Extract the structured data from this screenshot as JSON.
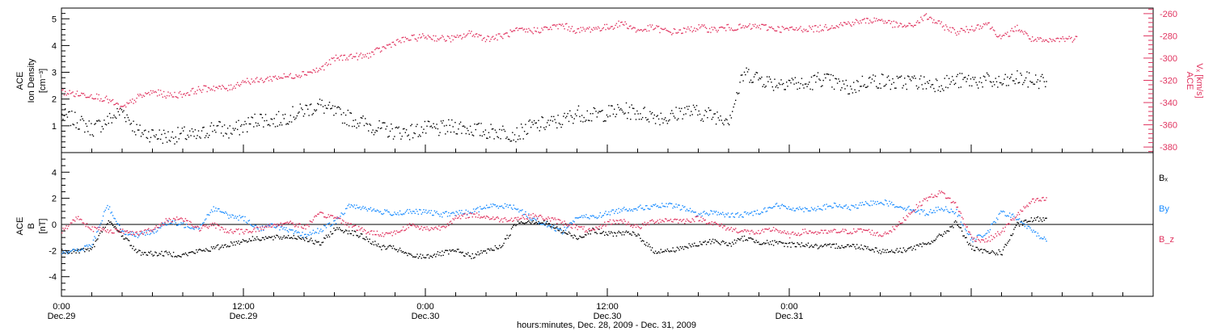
{
  "chart_data": [
    {
      "type": "scatter",
      "panel": "top",
      "ylabel_left_lines": [
        "ACE",
        "Ion Density",
        "[cm⁻³]"
      ],
      "ylabel_right_lines": [
        "ACE",
        "Vₓ [km/s]"
      ],
      "left_axis": {
        "ylim": [
          0,
          5.4
        ],
        "ticks": [
          "1",
          "2",
          "3",
          "4",
          "5"
        ],
        "color": "#000000"
      },
      "right_axis": {
        "ylim": [
          -385,
          -255
        ],
        "ticks": [
          "-260",
          "-280",
          "-300",
          "-320",
          "-340",
          "-360",
          "-380"
        ],
        "color": "#e0335f"
      },
      "series": [
        {
          "label_key": "density",
          "axis": "left",
          "color": "#000000",
          "x": [
            0,
            1,
            2,
            3,
            4,
            5,
            6,
            7,
            8,
            9,
            10,
            11,
            12,
            13,
            14,
            15,
            16,
            17,
            18,
            19,
            20,
            21,
            22,
            23,
            24,
            25,
            26,
            27,
            28,
            29,
            30,
            31,
            32,
            33,
            34,
            35,
            36,
            37,
            38,
            39,
            40,
            41,
            42,
            43,
            44,
            45,
            46,
            47,
            48,
            49,
            50,
            51,
            52,
            53,
            54,
            55,
            56,
            57,
            58,
            59,
            60,
            61,
            62,
            63,
            64,
            65
          ],
          "y": [
            1.4,
            1.2,
            0.9,
            1.2,
            1.6,
            0.8,
            0.7,
            0.6,
            0.7,
            0.6,
            1.0,
            0.8,
            1.0,
            1.3,
            1.2,
            1.4,
            1.6,
            1.8,
            1.5,
            1.3,
            1.1,
            0.9,
            0.8,
            0.8,
            0.9,
            0.9,
            1.0,
            0.9,
            0.8,
            0.8,
            0.7,
            1.0,
            1.1,
            1.2,
            1.5,
            1.4,
            1.5,
            1.6,
            1.5,
            1.4,
            1.3,
            1.6,
            1.5,
            1.4,
            1.3,
            3.0,
            2.8,
            2.6,
            2.7,
            2.5,
            2.8,
            2.6,
            2.4,
            2.7,
            2.7,
            2.6,
            2.7,
            2.6,
            2.6,
            2.7,
            2.7,
            2.7,
            2.6,
            2.8,
            2.7,
            2.7
          ],
          "spread": 0.3
        },
        {
          "label_key": "vx",
          "axis": "right",
          "color": "#e0335f",
          "x": [
            0,
            1,
            2,
            3,
            4,
            5,
            6,
            7,
            8,
            9,
            10,
            11,
            12,
            13,
            14,
            15,
            16,
            17,
            18,
            19,
            20,
            21,
            22,
            23,
            24,
            25,
            26,
            27,
            28,
            29,
            30,
            31,
            32,
            33,
            34,
            35,
            36,
            37,
            38,
            39,
            40,
            41,
            42,
            43,
            44,
            45,
            46,
            47,
            48,
            49,
            50,
            51,
            52,
            53,
            54,
            55,
            56,
            57,
            58,
            59,
            60,
            61,
            62,
            63,
            64,
            65,
            66,
            67
          ],
          "y": [
            -330,
            -332,
            -333,
            -337,
            -345,
            -335,
            -330,
            -333,
            -332,
            -328,
            -326,
            -327,
            -320,
            -320,
            -317,
            -316,
            -313,
            -310,
            -300,
            -298,
            -298,
            -292,
            -285,
            -282,
            -280,
            -282,
            -282,
            -277,
            -282,
            -280,
            -275,
            -275,
            -273,
            -270,
            -275,
            -273,
            -272,
            -268,
            -275,
            -272,
            -276,
            -275,
            -272,
            -274,
            -272,
            -272,
            -271,
            -273,
            -274,
            -273,
            -273,
            -270,
            -268,
            -266,
            -265,
            -270,
            -271,
            -262,
            -270,
            -276,
            -273,
            -268,
            -282,
            -272,
            -283,
            -285,
            -282,
            -282
          ],
          "spread": 3
        }
      ]
    },
    {
      "type": "scatter",
      "panel": "bottom",
      "ylabel_lines": [
        "ACE",
        "B",
        "[nT]"
      ],
      "ylim": [
        -5.5,
        5.5
      ],
      "yticks": [
        "4",
        "2",
        "0",
        "-2",
        "-4"
      ],
      "zero_line": true,
      "legend": [
        {
          "text": "Bₓ",
          "color": "#000000"
        },
        {
          "text": "By",
          "color": "#1a8cff"
        },
        {
          "text": "B_z",
          "color": "#e0335f"
        }
      ],
      "series": [
        {
          "name": "Bx",
          "color": "#000000",
          "x": [
            0,
            1,
            2,
            3,
            4,
            5,
            6,
            7,
            8,
            9,
            10,
            11,
            12,
            13,
            14,
            15,
            16,
            17,
            18,
            19,
            20,
            21,
            22,
            23,
            24,
            25,
            26,
            27,
            28,
            29,
            30,
            31,
            32,
            33,
            34,
            35,
            36,
            37,
            38,
            39,
            40,
            41,
            42,
            43,
            44,
            45,
            46,
            47,
            48,
            49,
            50,
            51,
            52,
            53,
            54,
            55,
            56,
            57,
            58,
            59,
            60,
            61,
            62,
            63,
            64,
            65
          ],
          "y": [
            -2.0,
            -2.0,
            -1.8,
            0.3,
            -0.8,
            -2.1,
            -2.2,
            -2.2,
            -2.3,
            -2.0,
            -1.8,
            -1.5,
            -1.2,
            -1.0,
            -1.0,
            -0.9,
            -1.0,
            -1.5,
            -0.3,
            -0.5,
            -1.0,
            -1.7,
            -1.8,
            -2.4,
            -2.4,
            -2.2,
            -2.0,
            -2.4,
            -2.0,
            -1.6,
            0.2,
            0.3,
            0.1,
            -0.5,
            -1.0,
            -0.4,
            -0.7,
            -0.6,
            -0.8,
            -2.0,
            -2.0,
            -1.7,
            -1.5,
            -1.2,
            -1.5,
            -1.0,
            -1.3,
            -1.4,
            -1.5,
            -1.5,
            -1.7,
            -1.6,
            -1.6,
            -1.7,
            -2.0,
            -2.0,
            -1.8,
            -1.5,
            -0.8,
            0.2,
            -1.8,
            -2.1,
            -2.1,
            0.0,
            0.4,
            0.5
          ],
          "spread": 0.2
        },
        {
          "name": "By",
          "color": "#1a8cff",
          "x": [
            0,
            1,
            2,
            3,
            4,
            5,
            6,
            7,
            8,
            9,
            10,
            11,
            12,
            13,
            14,
            15,
            16,
            17,
            18,
            19,
            20,
            21,
            22,
            23,
            24,
            25,
            26,
            27,
            28,
            29,
            30,
            31,
            32,
            33,
            34,
            35,
            36,
            37,
            38,
            39,
            40,
            41,
            42,
            43,
            44,
            45,
            46,
            47,
            48,
            49,
            50,
            51,
            52,
            53,
            54,
            55,
            56,
            57,
            58,
            59,
            60,
            61,
            62,
            63,
            64,
            65
          ],
          "y": [
            -2.0,
            -2.0,
            -1.5,
            1.5,
            -0.5,
            -0.8,
            -0.5,
            0.2,
            0.0,
            -0.2,
            1.3,
            0.7,
            0.5,
            -0.3,
            0.0,
            -0.5,
            -0.8,
            -0.4,
            0.2,
            1.5,
            1.3,
            1.0,
            0.9,
            1.0,
            1.0,
            0.8,
            0.9,
            1.0,
            1.4,
            1.5,
            1.3,
            0.5,
            0.0,
            -0.5,
            0.6,
            0.6,
            0.9,
            1.2,
            1.3,
            1.4,
            1.5,
            1.3,
            0.8,
            1.0,
            0.7,
            0.8,
            1.0,
            1.5,
            1.3,
            1.2,
            1.3,
            1.5,
            1.3,
            1.6,
            1.8,
            1.5,
            1.2,
            0.9,
            1.3,
            1.0,
            -1.2,
            -0.6,
            1.0,
            0.5,
            -0.5,
            -1.2
          ],
          "spread": 0.2
        },
        {
          "name": "Bz",
          "color": "#e0335f",
          "x": [
            0,
            1,
            2,
            3,
            4,
            5,
            6,
            7,
            8,
            9,
            10,
            11,
            12,
            13,
            14,
            15,
            16,
            17,
            18,
            19,
            20,
            21,
            22,
            23,
            24,
            25,
            26,
            27,
            28,
            29,
            30,
            31,
            32,
            33,
            34,
            35,
            36,
            37,
            38,
            39,
            40,
            41,
            42,
            43,
            44,
            45,
            46,
            47,
            48,
            49,
            50,
            51,
            52,
            53,
            54,
            55,
            56,
            57,
            58,
            59,
            60,
            61,
            62,
            63,
            64,
            65
          ],
          "y": [
            -0.5,
            0.6,
            -0.3,
            -0.4,
            -0.5,
            -0.6,
            -0.4,
            0.4,
            0.5,
            -0.3,
            0.0,
            -0.5,
            -0.5,
            -0.3,
            0.0,
            0.2,
            -0.2,
            0.8,
            0.6,
            0.0,
            -0.5,
            -0.7,
            -0.6,
            0.0,
            -0.3,
            -0.2,
            0.5,
            0.8,
            0.6,
            0.4,
            0.5,
            0.7,
            0.5,
            0.2,
            -0.2,
            -0.5,
            0.2,
            0.3,
            -0.2,
            0.3,
            0.4,
            0.3,
            0.5,
            0.1,
            -0.3,
            -0.5,
            -0.6,
            -0.3,
            -0.8,
            -0.5,
            -0.6,
            -0.5,
            -0.5,
            -0.4,
            -0.8,
            -0.2,
            1.0,
            2.0,
            2.5,
            1.5,
            -1.0,
            -1.2,
            -0.5,
            0.8,
            1.8,
            2.0
          ],
          "spread": 0.2
        }
      ]
    }
  ],
  "x_axis": {
    "range_hours": [
      0,
      72
    ],
    "tick_labels": [
      {
        "hour": 0,
        "time": "0:00",
        "date": "Dec.29"
      },
      {
        "hour": 12,
        "time": "12:00",
        "date": "Dec.29"
      },
      {
        "hour": 24,
        "time": "0:00",
        "date": "Dec.30"
      },
      {
        "hour": 36,
        "time": "12:00",
        "date": "Dec.30"
      },
      {
        "hour": 48,
        "time": "0:00",
        "date": "Dec.31"
      }
    ],
    "title": "hours:minutes, Dec. 28, 2009 - Dec. 31, 2009"
  }
}
